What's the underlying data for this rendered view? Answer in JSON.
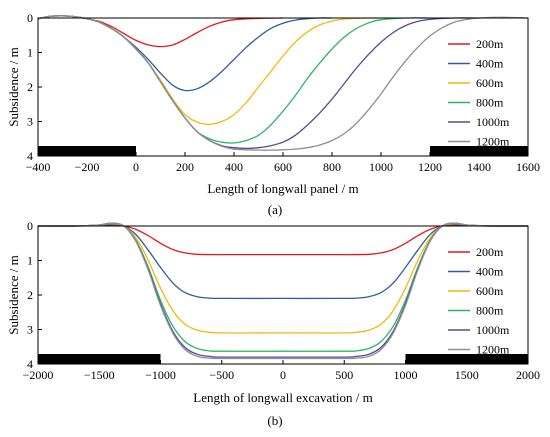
{
  "chart_data": [
    {
      "type": "line",
      "caption": "(a)",
      "xlabel": "Length of longwall panel / m",
      "ylabel": "Subsidence / m",
      "xlim": [
        -400,
        1600
      ],
      "ylim": [
        0,
        4
      ],
      "y_inverted": true,
      "x_ticks": [
        -400,
        -200,
        0,
        200,
        400,
        600,
        800,
        1000,
        1200,
        1400,
        1600
      ],
      "y_ticks": [
        0,
        1,
        2,
        3,
        4
      ],
      "legend_position": "right",
      "grid": false,
      "pillars": [
        {
          "x_start": -400,
          "x_end": 0
        },
        {
          "x_start": 1200,
          "x_end": 1600
        }
      ],
      "series": [
        {
          "name": "200m",
          "color": "#e41a1c",
          "x": [
            -400,
            -350,
            -300,
            -250,
            -200,
            -150,
            -100,
            -50,
            0,
            50,
            100,
            150,
            200,
            250,
            300,
            350,
            400,
            500,
            600
          ],
          "y": [
            0.02,
            -0.05,
            -0.06,
            -0.04,
            0.02,
            0.1,
            0.25,
            0.45,
            0.65,
            0.78,
            0.83,
            0.78,
            0.62,
            0.42,
            0.24,
            0.12,
            0.05,
            0.01,
            0
          ]
        },
        {
          "name": "400m",
          "color": "#2c5f9e",
          "x": [
            -400,
            -350,
            -300,
            -250,
            -200,
            -150,
            -100,
            -50,
            0,
            50,
            100,
            150,
            200,
            250,
            300,
            350,
            400,
            450,
            500,
            550,
            600,
            650,
            700,
            750,
            800
          ],
          "y": [
            0.02,
            -0.05,
            -0.06,
            -0.04,
            0.02,
            0.12,
            0.3,
            0.55,
            0.85,
            1.2,
            1.6,
            1.95,
            2.1,
            2.05,
            1.85,
            1.55,
            1.2,
            0.85,
            0.55,
            0.3,
            0.15,
            0.06,
            0.02,
            0,
            0
          ]
        },
        {
          "name": "600m",
          "color": "#f2b90f",
          "x": [
            -400,
            -350,
            -300,
            -250,
            -200,
            -150,
            -100,
            -50,
            0,
            50,
            100,
            150,
            200,
            250,
            300,
            350,
            400,
            450,
            500,
            550,
            600,
            650,
            700,
            750,
            800,
            850,
            900,
            950,
            1000
          ],
          "y": [
            0.02,
            -0.05,
            -0.06,
            -0.04,
            0.02,
            0.12,
            0.3,
            0.55,
            0.9,
            1.3,
            1.8,
            2.35,
            2.8,
            3.02,
            3.08,
            3.0,
            2.8,
            2.45,
            2.0,
            1.55,
            1.1,
            0.7,
            0.4,
            0.2,
            0.09,
            0.03,
            0.01,
            0,
            0
          ]
        },
        {
          "name": "800m",
          "color": "#2db562",
          "x": [
            -400,
            -350,
            -300,
            -250,
            -200,
            -150,
            -100,
            -50,
            0,
            50,
            100,
            150,
            200,
            250,
            300,
            350,
            400,
            450,
            500,
            550,
            600,
            650,
            700,
            750,
            800,
            850,
            900,
            950,
            1000,
            1100,
            1200
          ],
          "y": [
            0.02,
            -0.05,
            -0.06,
            -0.04,
            0.02,
            0.12,
            0.3,
            0.55,
            0.9,
            1.3,
            1.85,
            2.4,
            2.9,
            3.3,
            3.5,
            3.6,
            3.62,
            3.55,
            3.4,
            3.1,
            2.7,
            2.25,
            1.75,
            1.3,
            0.9,
            0.55,
            0.3,
            0.14,
            0.05,
            0.0,
            0
          ]
        },
        {
          "name": "1000m",
          "color": "#55489b",
          "x": [
            -400,
            -350,
            -300,
            -250,
            -200,
            -150,
            -100,
            -50,
            0,
            50,
            100,
            150,
            200,
            250,
            300,
            350,
            400,
            450,
            500,
            550,
            600,
            650,
            700,
            750,
            800,
            850,
            900,
            950,
            1000,
            1050,
            1100,
            1150,
            1200,
            1300,
            1400
          ],
          "y": [
            0.02,
            -0.05,
            -0.06,
            -0.04,
            0.02,
            0.12,
            0.3,
            0.55,
            0.9,
            1.3,
            1.85,
            2.4,
            2.9,
            3.3,
            3.55,
            3.7,
            3.76,
            3.78,
            3.76,
            3.7,
            3.6,
            3.4,
            3.1,
            2.75,
            2.35,
            1.9,
            1.45,
            1.05,
            0.7,
            0.42,
            0.22,
            0.1,
            0.04,
            0.0,
            0
          ]
        },
        {
          "name": "1200m",
          "color": "#8f8f8f",
          "x": [
            -400,
            -350,
            -300,
            -250,
            -200,
            -150,
            -100,
            -50,
            0,
            50,
            100,
            150,
            200,
            250,
            300,
            350,
            400,
            450,
            500,
            550,
            600,
            650,
            700,
            750,
            800,
            850,
            900,
            950,
            1000,
            1050,
            1100,
            1150,
            1200,
            1250,
            1300,
            1350,
            1400,
            1500,
            1600
          ],
          "y": [
            0.02,
            -0.05,
            -0.06,
            -0.04,
            0.02,
            0.12,
            0.3,
            0.55,
            0.9,
            1.3,
            1.85,
            2.4,
            2.9,
            3.3,
            3.55,
            3.72,
            3.8,
            3.82,
            3.83,
            3.83,
            3.82,
            3.8,
            3.76,
            3.68,
            3.55,
            3.35,
            3.05,
            2.65,
            2.2,
            1.7,
            1.25,
            0.85,
            0.52,
            0.28,
            0.12,
            0.04,
            0.0,
            -0.02,
            0
          ]
        }
      ]
    },
    {
      "type": "line",
      "caption": "(b)",
      "xlabel": "Length of longwall excavation / m",
      "ylabel": "Subsidence / m",
      "xlim": [
        -2000,
        2000
      ],
      "ylim": [
        0,
        4
      ],
      "y_inverted": true,
      "x_ticks": [
        -2000,
        -1500,
        -1000,
        -500,
        0,
        500,
        1000,
        1500,
        2000
      ],
      "y_ticks": [
        0,
        1,
        2,
        3,
        4
      ],
      "legend_position": "right",
      "grid": false,
      "pillars": [
        {
          "x_start": -2000,
          "x_end": -1000
        },
        {
          "x_start": 1000,
          "x_end": 2000
        }
      ],
      "series": [
        {
          "name": "200m",
          "color": "#e41a1c",
          "x": [
            -2000,
            -1700,
            -1500,
            -1400,
            -1300,
            -1200,
            -1100,
            -1000,
            -900,
            -800,
            -700,
            -500,
            0,
            500,
            700,
            800,
            900,
            1000,
            1100,
            1200,
            1300,
            1400,
            1500,
            1700,
            2000
          ],
          "y": [
            0,
            0,
            -0.01,
            -0.02,
            0.0,
            0.1,
            0.28,
            0.5,
            0.68,
            0.78,
            0.82,
            0.83,
            0.83,
            0.83,
            0.82,
            0.78,
            0.68,
            0.5,
            0.28,
            0.1,
            0.0,
            -0.02,
            -0.01,
            0,
            0
          ]
        },
        {
          "name": "400m",
          "color": "#2c5f9e",
          "x": [
            -2000,
            -1700,
            -1500,
            -1400,
            -1300,
            -1200,
            -1100,
            -1000,
            -900,
            -800,
            -700,
            -600,
            -500,
            0,
            500,
            600,
            700,
            800,
            900,
            1000,
            1100,
            1200,
            1300,
            1400,
            1500,
            1700,
            2000
          ],
          "y": [
            0,
            0,
            -0.02,
            -0.05,
            0.0,
            0.25,
            0.7,
            1.2,
            1.65,
            1.93,
            2.05,
            2.09,
            2.1,
            2.1,
            2.1,
            2.09,
            2.05,
            1.93,
            1.65,
            1.2,
            0.7,
            0.25,
            0.0,
            -0.05,
            -0.02,
            0,
            0
          ]
        },
        {
          "name": "600m",
          "color": "#f2b90f",
          "x": [
            -2000,
            -1700,
            -1500,
            -1400,
            -1300,
            -1200,
            -1100,
            -1000,
            -900,
            -800,
            -700,
            -600,
            -500,
            0,
            500,
            600,
            700,
            800,
            900,
            1000,
            1100,
            1200,
            1300,
            1400,
            1500,
            1700,
            2000
          ],
          "y": [
            0,
            0,
            -0.03,
            -0.07,
            0.0,
            0.35,
            1.0,
            1.8,
            2.45,
            2.85,
            3.02,
            3.08,
            3.1,
            3.1,
            3.1,
            3.08,
            3.02,
            2.85,
            2.45,
            1.8,
            1.0,
            0.35,
            0.0,
            -0.07,
            -0.03,
            0,
            0
          ]
        },
        {
          "name": "800m",
          "color": "#2db562",
          "x": [
            -2000,
            -1700,
            -1500,
            -1400,
            -1300,
            -1200,
            -1100,
            -1000,
            -900,
            -800,
            -700,
            -600,
            -500,
            0,
            500,
            600,
            700,
            800,
            900,
            1000,
            1100,
            1200,
            1300,
            1400,
            1500,
            1700,
            2000
          ],
          "y": [
            0,
            0,
            -0.03,
            -0.08,
            0.0,
            0.42,
            1.2,
            2.15,
            2.9,
            3.35,
            3.55,
            3.62,
            3.63,
            3.63,
            3.63,
            3.62,
            3.55,
            3.35,
            2.9,
            2.15,
            1.2,
            0.42,
            0.0,
            -0.08,
            -0.03,
            0,
            0
          ]
        },
        {
          "name": "1000m",
          "color": "#55489b",
          "x": [
            -2000,
            -1700,
            -1500,
            -1400,
            -1300,
            -1200,
            -1100,
            -1000,
            -900,
            -800,
            -700,
            -600,
            -500,
            0,
            500,
            600,
            700,
            800,
            900,
            1000,
            1100,
            1200,
            1300,
            1400,
            1500,
            1700,
            2000
          ],
          "y": [
            0,
            0,
            -0.03,
            -0.08,
            0.0,
            0.44,
            1.25,
            2.25,
            3.05,
            3.52,
            3.72,
            3.78,
            3.8,
            3.8,
            3.8,
            3.78,
            3.72,
            3.52,
            3.05,
            2.25,
            1.25,
            0.44,
            0.0,
            -0.08,
            -0.03,
            0,
            0
          ]
        },
        {
          "name": "1200m",
          "color": "#8f8f8f",
          "x": [
            -2000,
            -1700,
            -1500,
            -1400,
            -1300,
            -1200,
            -1100,
            -1000,
            -900,
            -800,
            -700,
            -600,
            -500,
            0,
            500,
            600,
            700,
            800,
            900,
            1000,
            1100,
            1200,
            1300,
            1400,
            1500,
            1700,
            2000
          ],
          "y": [
            0,
            0,
            -0.03,
            -0.08,
            0.0,
            0.45,
            1.28,
            2.3,
            3.1,
            3.58,
            3.78,
            3.83,
            3.84,
            3.84,
            3.84,
            3.83,
            3.78,
            3.58,
            3.1,
            2.3,
            1.28,
            0.45,
            0.0,
            -0.08,
            -0.03,
            0,
            0
          ]
        }
      ]
    }
  ]
}
